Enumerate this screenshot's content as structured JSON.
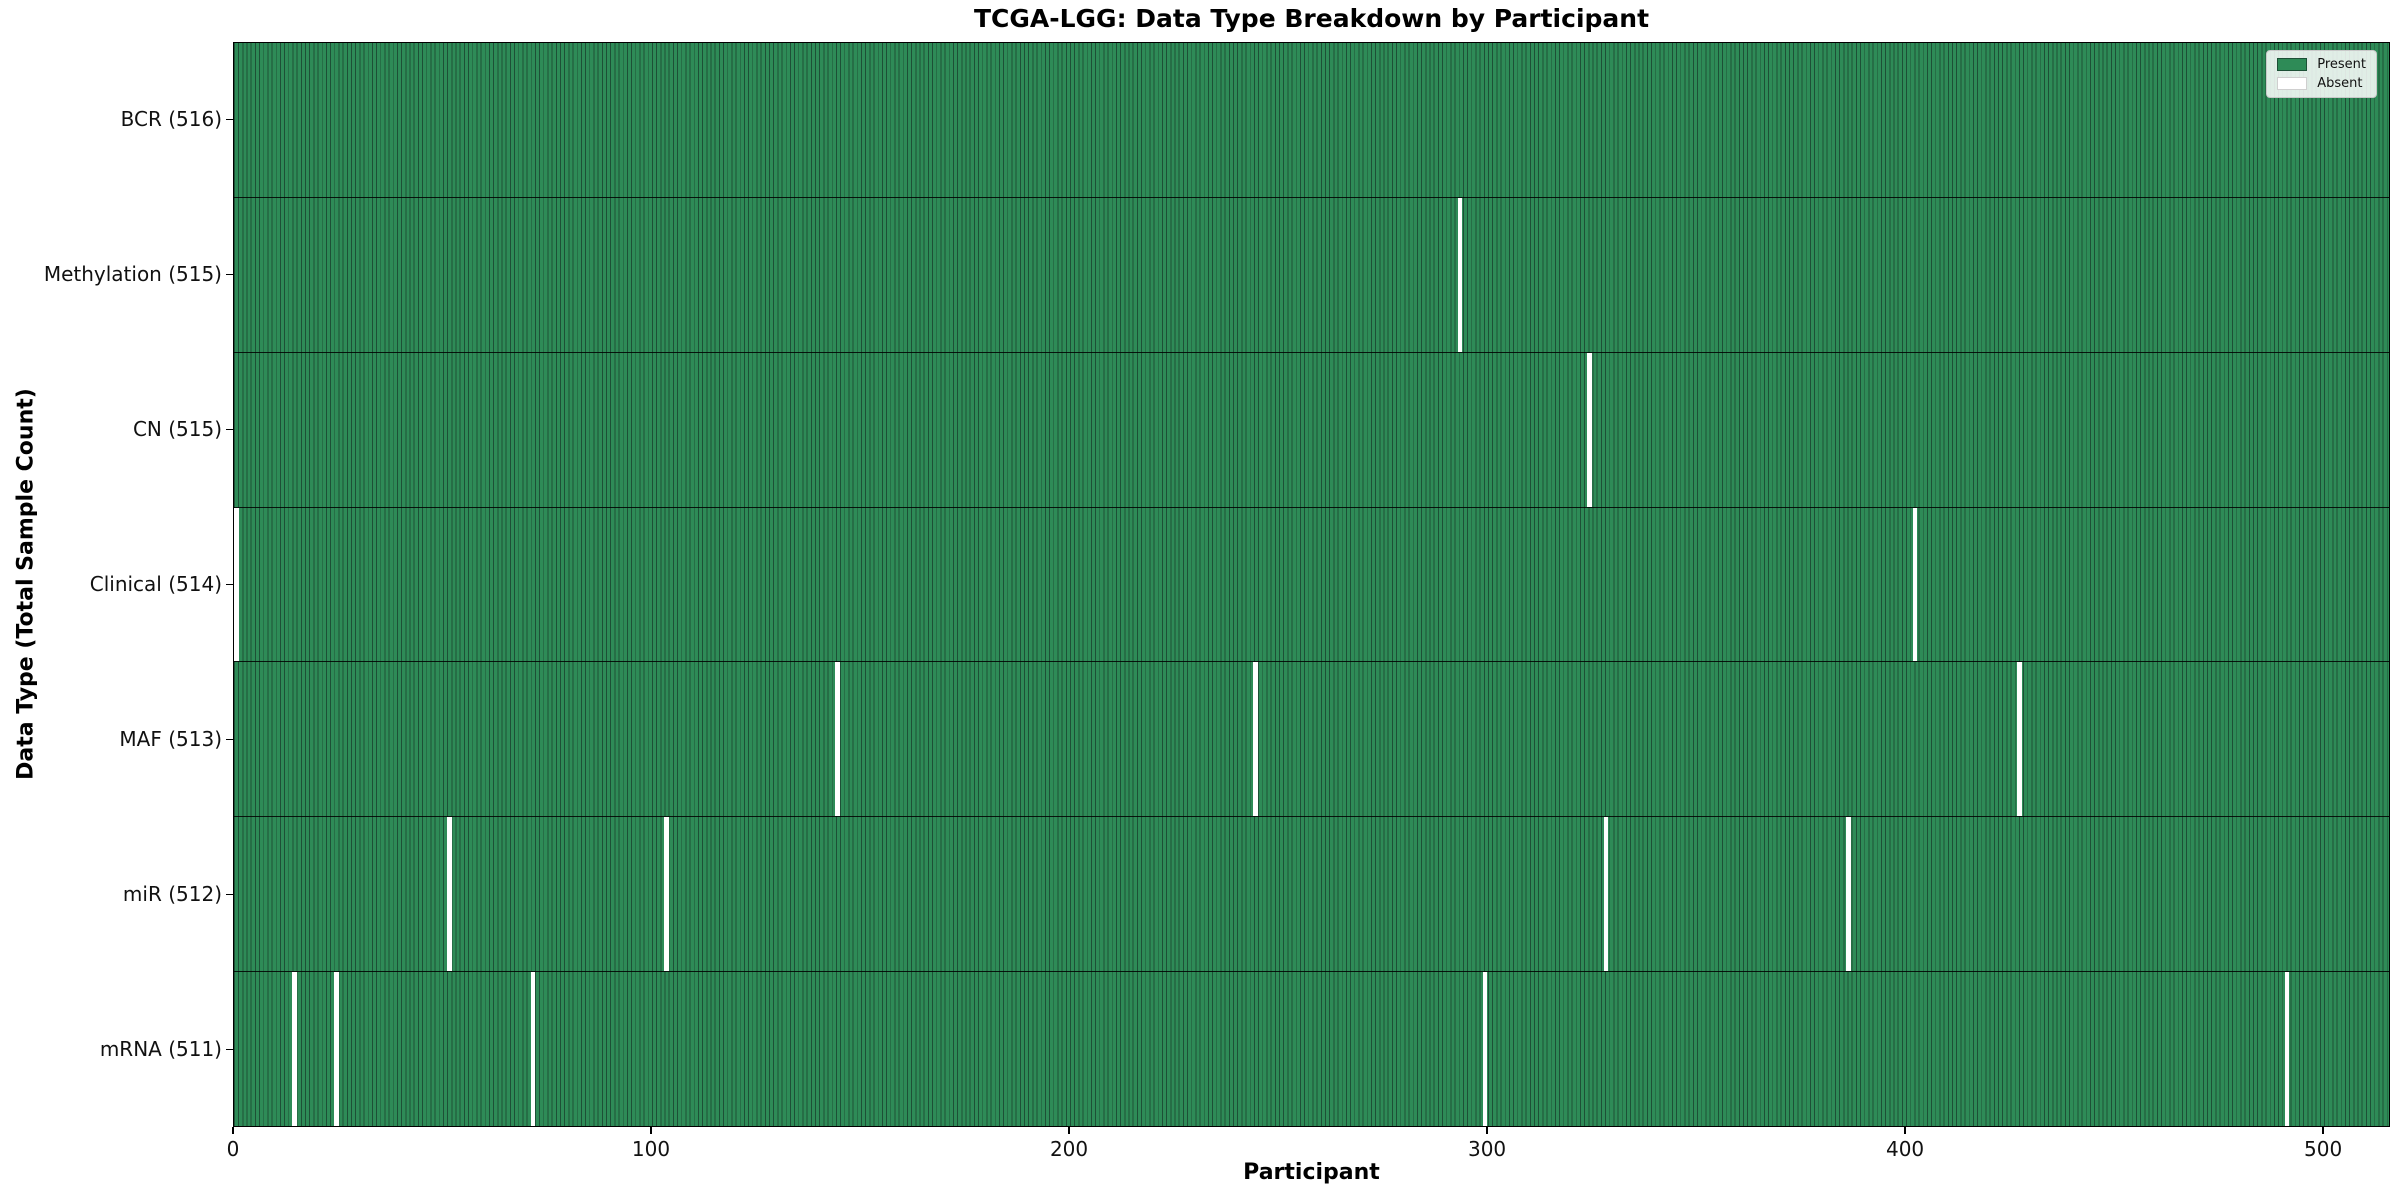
{
  "figure": {
    "title": "TCGA-LGG: Data Type Breakdown by Participant",
    "xlabel": "Participant",
    "ylabel": "Data Type (Total Sample Count)"
  },
  "legend": {
    "items": [
      {
        "label": "Present",
        "color": "#2e8b57"
      },
      {
        "label": "Absent",
        "color": "#ffffff"
      }
    ],
    "position": "upper right"
  },
  "chart_data": {
    "type": "heatmap",
    "title": "TCGA-LGG: Data Type Breakdown by Participant",
    "xlabel": "Participant",
    "ylabel": "Data Type (Total Sample Count)",
    "n_participants": 516,
    "x_ticks": [
      0,
      100,
      200,
      300,
      400,
      500
    ],
    "xlim": [
      0,
      516
    ],
    "grid": false,
    "present_color": "#2e8b57",
    "absent_color": "#ffffff",
    "bar_edge_color": "#1d5036",
    "legend_entries": [
      "Present",
      "Absent"
    ],
    "legend_position": "upper right",
    "rows": [
      {
        "name": "BCR",
        "total": 516,
        "label": "BCR (516)",
        "absent_participants": []
      },
      {
        "name": "Methylation",
        "total": 515,
        "label": "Methylation (515)",
        "absent_participants": [
          293
        ]
      },
      {
        "name": "CN",
        "total": 515,
        "label": "CN (515)",
        "absent_participants": [
          324
        ]
      },
      {
        "name": "Clinical",
        "total": 514,
        "label": "Clinical (514)",
        "absent_participants": [
          0,
          402
        ]
      },
      {
        "name": "MAF",
        "total": 513,
        "label": "MAF (513)",
        "absent_participants": [
          144,
          244,
          427
        ]
      },
      {
        "name": "miR",
        "total": 512,
        "label": "miR (512)",
        "absent_participants": [
          51,
          103,
          328,
          386
        ]
      },
      {
        "name": "mRNA",
        "total": 511,
        "label": "mRNA (511)",
        "absent_participants": [
          14,
          24,
          71,
          299,
          491
        ]
      }
    ]
  }
}
